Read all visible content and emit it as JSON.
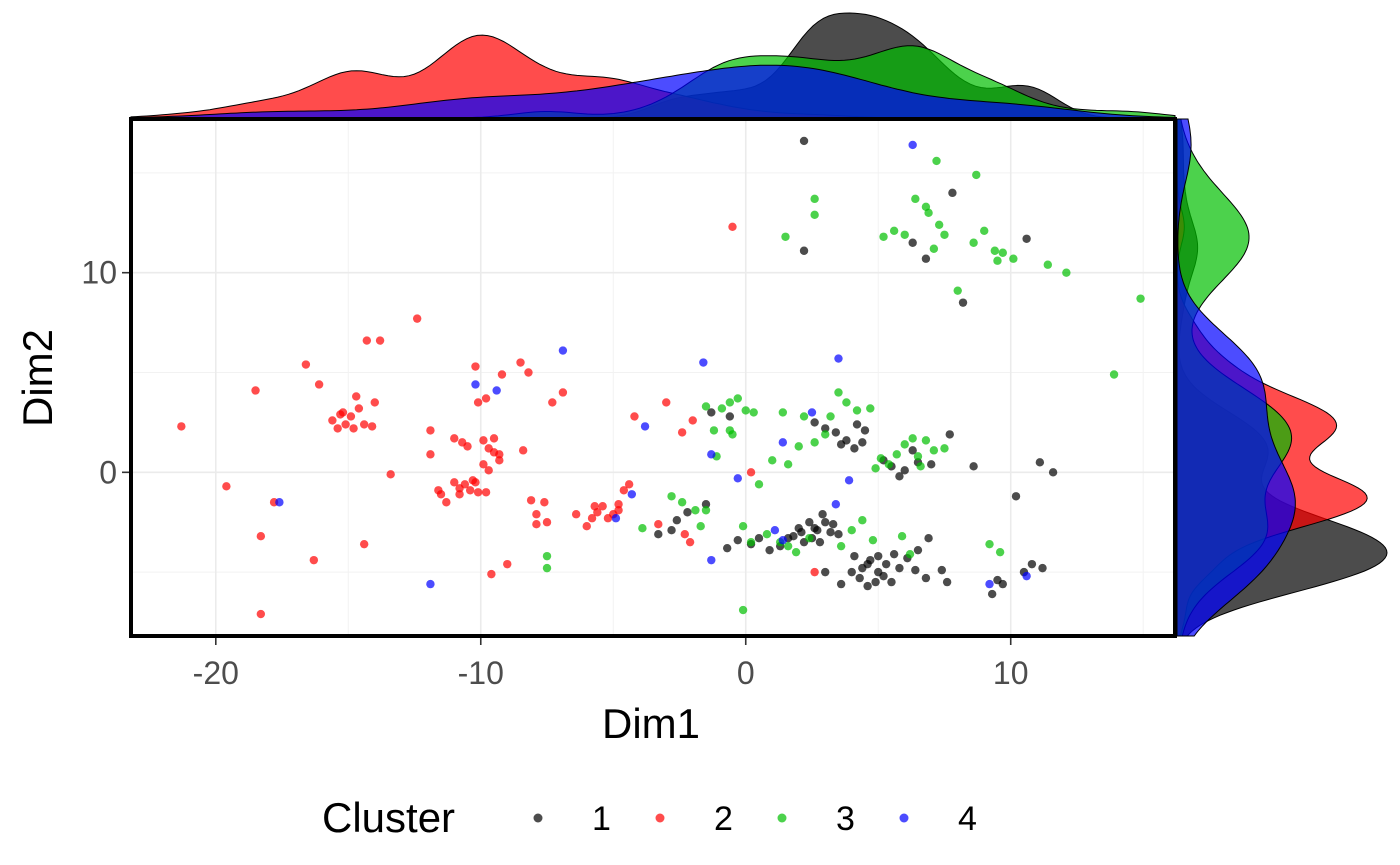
{
  "chart_data": {
    "type": "scatter",
    "title": "",
    "xlabel": "Dim1",
    "ylabel": "Dim2",
    "xlim": [
      -23.2,
      16.2
    ],
    "ylim": [
      -8.2,
      17.7
    ],
    "xticks": [
      -20,
      -10,
      0,
      10
    ],
    "yticks": [
      0,
      10
    ],
    "xtick_labels": [
      "-20",
      "-10",
      "0",
      "10"
    ],
    "ytick_labels": [
      "0",
      "10"
    ],
    "grid": true,
    "marginal_density": {
      "top": true,
      "right": true
    },
    "legend": {
      "title": "Cluster",
      "position": "bottom"
    },
    "series": [
      {
        "name": "1",
        "color": "#000000",
        "points": [
          [
            2.2,
            16.6
          ],
          [
            2.2,
            11.1
          ],
          [
            6.3,
            11.5
          ],
          [
            6.8,
            10.7
          ],
          [
            7.8,
            14.0
          ],
          [
            8.2,
            8.5
          ],
          [
            10.6,
            11.7
          ],
          [
            7.7,
            1.9
          ],
          [
            8.6,
            0.3
          ],
          [
            11.1,
            0.5
          ],
          [
            11.6,
            0.0
          ],
          [
            10.2,
            -1.2
          ],
          [
            -1.3,
            3.0
          ],
          [
            -0.6,
            2.8
          ],
          [
            2.6,
            2.5
          ],
          [
            3.0,
            2.2
          ],
          [
            3.4,
            2.0
          ],
          [
            3.8,
            1.6
          ],
          [
            4.2,
            2.4
          ],
          [
            4.5,
            2.1
          ],
          [
            4.4,
            1.5
          ],
          [
            4.1,
            1.2
          ],
          [
            3.6,
            1.4
          ],
          [
            5.2,
            0.6
          ],
          [
            5.5,
            0.3
          ],
          [
            6.0,
            0.1
          ],
          [
            6.5,
            0.5
          ],
          [
            7.0,
            0.4
          ],
          [
            6.3,
            1.1
          ],
          [
            5.8,
            -0.2
          ],
          [
            -3.3,
            -3.1
          ],
          [
            -2.8,
            -2.9
          ],
          [
            -2.6,
            -2.4
          ],
          [
            -2.2,
            -2.0
          ],
          [
            -1.5,
            -1.6
          ],
          [
            -0.3,
            -3.4
          ],
          [
            0.2,
            -3.6
          ],
          [
            0.5,
            -3.3
          ],
          [
            0.9,
            -3.9
          ],
          [
            -0.7,
            -3.8
          ],
          [
            2.0,
            -2.8
          ],
          [
            2.4,
            -2.5
          ],
          [
            2.7,
            -2.9
          ],
          [
            3.0,
            -2.5
          ],
          [
            3.2,
            -3.0
          ],
          [
            2.5,
            -3.3
          ],
          [
            2.2,
            -3.5
          ],
          [
            1.8,
            -3.2
          ],
          [
            1.3,
            -3.7
          ],
          [
            1.6,
            -3.3
          ],
          [
            2.9,
            -2.1
          ],
          [
            3.3,
            -2.6
          ],
          [
            3.5,
            -3.1
          ],
          [
            2.8,
            -3.5
          ],
          [
            2.1,
            -3.0
          ],
          [
            2.6,
            -2.8
          ],
          [
            4.1,
            -4.2
          ],
          [
            4.4,
            -4.8
          ],
          [
            4.7,
            -4.4
          ],
          [
            5.0,
            -5.0
          ],
          [
            4.3,
            -5.3
          ],
          [
            4.9,
            -5.5
          ],
          [
            5.3,
            -4.6
          ],
          [
            5.6,
            -4.1
          ],
          [
            5.2,
            -5.2
          ],
          [
            5.8,
            -4.8
          ],
          [
            6.1,
            -4.3
          ],
          [
            5.5,
            -5.5
          ],
          [
            4.6,
            -5.7
          ],
          [
            4.0,
            -5.0
          ],
          [
            6.4,
            -4.9
          ],
          [
            6.8,
            -5.3
          ],
          [
            6.5,
            -3.9
          ],
          [
            6.9,
            -3.3
          ],
          [
            7.4,
            -4.9
          ],
          [
            7.6,
            -5.5
          ],
          [
            3.0,
            -5.0
          ],
          [
            3.6,
            -5.6
          ],
          [
            9.3,
            -6.1
          ],
          [
            9.5,
            -5.4
          ],
          [
            9.7,
            -5.6
          ],
          [
            10.8,
            -4.6
          ],
          [
            11.2,
            -4.8
          ],
          [
            10.5,
            -5.0
          ],
          [
            4.6,
            -4.6
          ],
          [
            5.0,
            -4.2
          ]
        ]
      },
      {
        "name": "2",
        "color": "#ff0000",
        "points": [
          [
            -21.3,
            2.3
          ],
          [
            -19.6,
            -0.7
          ],
          [
            -18.5,
            4.1
          ],
          [
            -18.3,
            -3.2
          ],
          [
            -18.3,
            -7.1
          ],
          [
            -17.8,
            -1.5
          ],
          [
            -16.6,
            5.4
          ],
          [
            -16.1,
            4.4
          ],
          [
            -16.3,
            -4.4
          ],
          [
            -15.6,
            2.6
          ],
          [
            -15.3,
            2.9
          ],
          [
            -15.1,
            2.4
          ],
          [
            -14.9,
            2.8
          ],
          [
            -14.8,
            2.2
          ],
          [
            -15.4,
            2.2
          ],
          [
            -14.6,
            3.2
          ],
          [
            -14.7,
            3.8
          ],
          [
            -15.2,
            3.0
          ],
          [
            -14.4,
            2.4
          ],
          [
            -14.1,
            2.3
          ],
          [
            -14.3,
            6.6
          ],
          [
            -13.8,
            6.6
          ],
          [
            -14.0,
            3.5
          ],
          [
            -14.4,
            -3.6
          ],
          [
            -13.4,
            -0.1
          ],
          [
            -12.4,
            7.7
          ],
          [
            -11.9,
            2.1
          ],
          [
            -11.9,
            0.9
          ],
          [
            -11.6,
            -0.9
          ],
          [
            -11.5,
            -1.1
          ],
          [
            -11.3,
            -1.5
          ],
          [
            -11.0,
            -0.5
          ],
          [
            -10.8,
            -0.8
          ],
          [
            -10.6,
            -0.6
          ],
          [
            -10.4,
            -0.9
          ],
          [
            -10.1,
            -1.0
          ],
          [
            -10.3,
            -0.4
          ],
          [
            -10.8,
            -1.1
          ],
          [
            -11.0,
            1.7
          ],
          [
            -10.7,
            1.5
          ],
          [
            -10.5,
            1.3
          ],
          [
            -10.2,
            -0.5
          ],
          [
            -9.8,
            -1.0
          ],
          [
            -9.9,
            1.6
          ],
          [
            -9.7,
            1.2
          ],
          [
            -9.5,
            1.0
          ],
          [
            -9.3,
            0.9
          ],
          [
            -9.9,
            0.4
          ],
          [
            -9.7,
            0.1
          ],
          [
            -9.3,
            0.6
          ],
          [
            -9.5,
            1.7
          ],
          [
            -10.2,
            5.3
          ],
          [
            -9.6,
            -5.1
          ],
          [
            -9.2,
            4.9
          ],
          [
            -9.0,
            -4.6
          ],
          [
            -8.5,
            5.5
          ],
          [
            -8.2,
            5.0
          ],
          [
            -10.1,
            3.5
          ],
          [
            -9.8,
            3.7
          ],
          [
            -8.4,
            1.1
          ],
          [
            -8.1,
            -1.4
          ],
          [
            -7.9,
            -2.1
          ],
          [
            -7.6,
            -1.5
          ],
          [
            -7.9,
            -2.6
          ],
          [
            -7.5,
            -2.5
          ],
          [
            -7.3,
            3.5
          ],
          [
            -6.9,
            4.0
          ],
          [
            -6.4,
            -2.1
          ],
          [
            -6.0,
            -2.7
          ],
          [
            -5.8,
            -2.3
          ],
          [
            -5.6,
            -2.0
          ],
          [
            -5.4,
            -1.7
          ],
          [
            -5.2,
            -2.3
          ],
          [
            -5.0,
            -2.1
          ],
          [
            -4.8,
            -1.9
          ],
          [
            -5.7,
            -1.7
          ],
          [
            -4.6,
            -0.9
          ],
          [
            -4.4,
            -0.6
          ],
          [
            -4.8,
            -1.6
          ],
          [
            -4.2,
            2.8
          ],
          [
            -3.3,
            -2.6
          ],
          [
            -3.0,
            3.5
          ],
          [
            -2.3,
            -3.1
          ],
          [
            -2.1,
            -3.5
          ],
          [
            -2.0,
            2.6
          ],
          [
            -2.4,
            2.0
          ],
          [
            -0.5,
            12.3
          ],
          [
            0.2,
            0.0
          ],
          [
            2.6,
            -5.0
          ]
        ]
      },
      {
        "name": "3",
        "color": "#00bf00",
        "points": [
          [
            1.5,
            11.8
          ],
          [
            2.6,
            13.7
          ],
          [
            2.6,
            12.9
          ],
          [
            5.2,
            11.8
          ],
          [
            5.6,
            12.1
          ],
          [
            6.0,
            11.9
          ],
          [
            6.4,
            13.7
          ],
          [
            7.2,
            15.6
          ],
          [
            6.8,
            13.3
          ],
          [
            6.9,
            13.0
          ],
          [
            7.3,
            12.4
          ],
          [
            7.1,
            11.2
          ],
          [
            7.5,
            11.9
          ],
          [
            8.7,
            14.9
          ],
          [
            9.0,
            12.1
          ],
          [
            9.4,
            11.1
          ],
          [
            8.6,
            11.5
          ],
          [
            9.5,
            10.6
          ],
          [
            9.7,
            11.0
          ],
          [
            10.1,
            10.7
          ],
          [
            11.4,
            10.4
          ],
          [
            12.1,
            10.0
          ],
          [
            8.0,
            9.1
          ],
          [
            14.9,
            8.7
          ],
          [
            13.9,
            4.9
          ],
          [
            1.4,
            3.0
          ],
          [
            2.2,
            2.8
          ],
          [
            3.2,
            2.8
          ],
          [
            3.5,
            4.0
          ],
          [
            3.8,
            3.5
          ],
          [
            4.2,
            3.1
          ],
          [
            4.7,
            3.2
          ],
          [
            3.0,
            1.9
          ],
          [
            2.6,
            1.5
          ],
          [
            2.0,
            1.3
          ],
          [
            1.6,
            0.4
          ],
          [
            1.0,
            0.6
          ],
          [
            -1.5,
            3.3
          ],
          [
            -0.9,
            3.2
          ],
          [
            -0.6,
            3.5
          ],
          [
            -0.3,
            3.7
          ],
          [
            0.0,
            3.1
          ],
          [
            0.3,
            3.0
          ],
          [
            -0.6,
            2.1
          ],
          [
            -1.2,
            2.1
          ],
          [
            -0.5,
            1.9
          ],
          [
            -1.1,
            0.8
          ],
          [
            0.5,
            -0.6
          ],
          [
            4.9,
            0.2
          ],
          [
            5.1,
            0.7
          ],
          [
            5.4,
            0.4
          ],
          [
            5.7,
            0.9
          ],
          [
            6.0,
            1.4
          ],
          [
            6.3,
            1.7
          ],
          [
            6.5,
            0.8
          ],
          [
            6.8,
            1.6
          ],
          [
            7.1,
            1.1
          ],
          [
            7.5,
            1.2
          ],
          [
            6.6,
            0.3
          ],
          [
            -3.9,
            -2.8
          ],
          [
            -2.8,
            -1.2
          ],
          [
            -2.4,
            -1.5
          ],
          [
            -1.9,
            -1.9
          ],
          [
            -1.7,
            -2.7
          ],
          [
            -1.5,
            -1.9
          ],
          [
            -0.1,
            -2.7
          ],
          [
            0.2,
            -3.5
          ],
          [
            0.8,
            -3.1
          ],
          [
            1.3,
            -3.5
          ],
          [
            1.6,
            -3.7
          ],
          [
            1.9,
            -4.0
          ],
          [
            2.4,
            -3.3
          ],
          [
            3.6,
            -3.7
          ],
          [
            4.0,
            -2.9
          ],
          [
            4.4,
            -2.4
          ],
          [
            4.8,
            -3.4
          ],
          [
            5.9,
            -3.2
          ],
          [
            6.2,
            -4.1
          ],
          [
            9.2,
            -3.6
          ],
          [
            9.6,
            -4.0
          ],
          [
            -7.5,
            -4.2
          ],
          [
            -7.5,
            -4.8
          ],
          [
            -0.1,
            -6.9
          ]
        ]
      },
      {
        "name": "4",
        "color": "#0000ff",
        "points": [
          [
            -17.6,
            -1.5
          ],
          [
            -11.9,
            -5.6
          ],
          [
            -10.2,
            4.4
          ],
          [
            -9.4,
            4.1
          ],
          [
            -6.9,
            6.1
          ],
          [
            -4.3,
            -1.1
          ],
          [
            -3.8,
            2.3
          ],
          [
            -1.6,
            5.5
          ],
          [
            -1.3,
            0.9
          ],
          [
            -1.3,
            -4.4
          ],
          [
            -0.3,
            -0.3
          ],
          [
            1.1,
            -2.9
          ],
          [
            1.4,
            -3.4
          ],
          [
            1.4,
            1.5
          ],
          [
            2.5,
            3.0
          ],
          [
            3.5,
            5.7
          ],
          [
            3.4,
            -1.6
          ],
          [
            3.9,
            -0.4
          ],
          [
            6.3,
            16.4
          ],
          [
            9.2,
            -5.6
          ],
          [
            10.6,
            -5.2
          ],
          [
            -4.9,
            -2.3
          ]
        ]
      }
    ]
  }
}
